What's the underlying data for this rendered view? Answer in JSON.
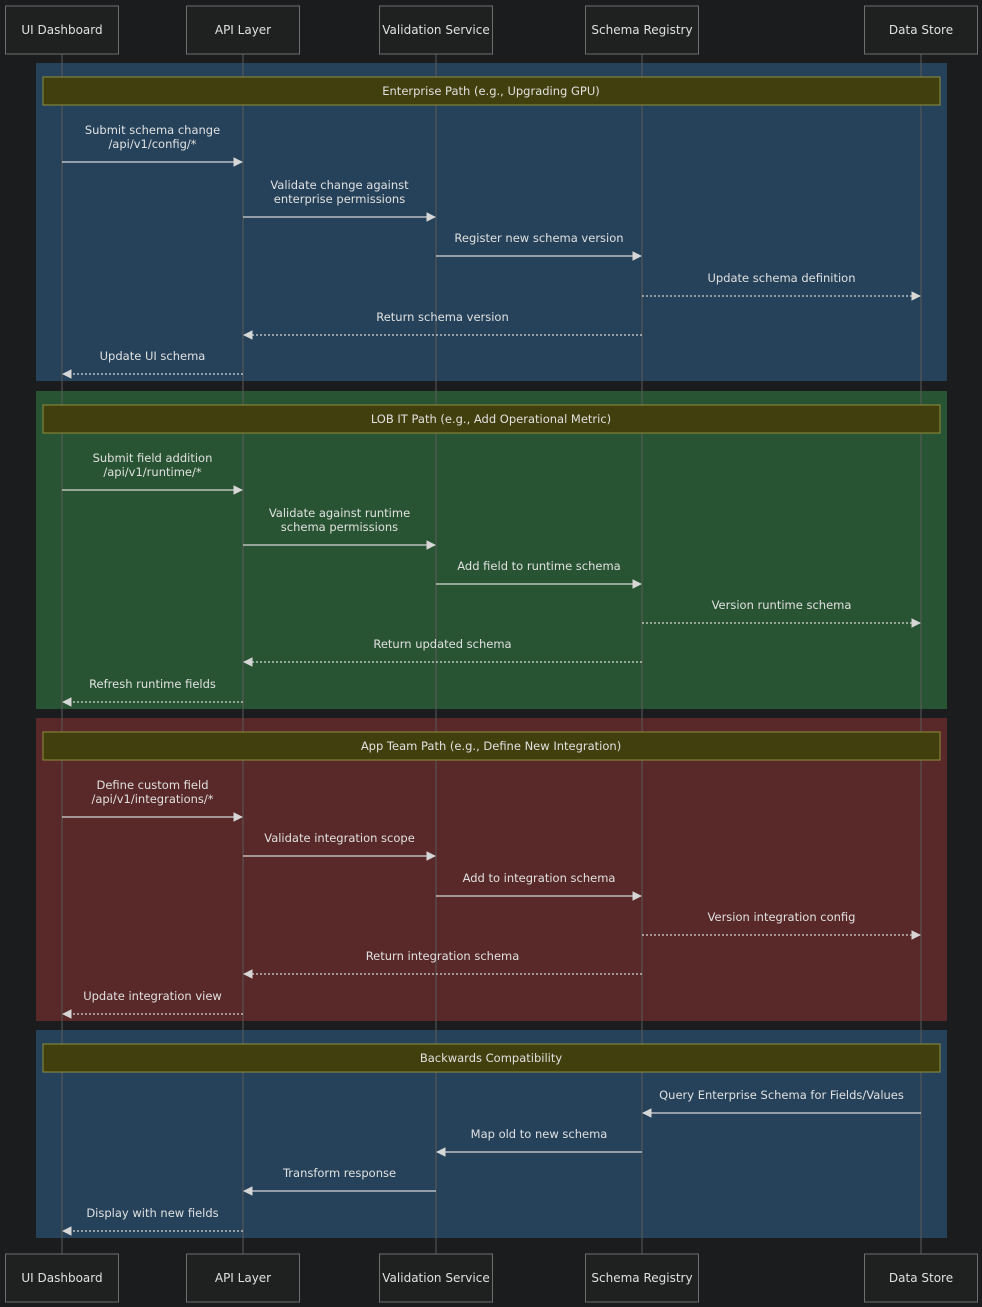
{
  "participants": [
    {
      "id": "ui",
      "label": "UI Dashboard"
    },
    {
      "id": "api",
      "label": "API Layer"
    },
    {
      "id": "val",
      "label": "Validation Service"
    },
    {
      "id": "reg",
      "label": "Schema Registry"
    },
    {
      "id": "ds",
      "label": "Data Store"
    }
  ],
  "sections": [
    {
      "id": "enterprise",
      "title": "Enterprise Path (e.g., Upgrading GPU)",
      "color": "#25425a",
      "messages": [
        {
          "from": "ui",
          "to": "api",
          "lines": [
            "Submit schema change",
            "/api/v1/config/*"
          ],
          "style": "solid"
        },
        {
          "from": "api",
          "to": "val",
          "lines": [
            "Validate change against",
            "enterprise permissions"
          ],
          "style": "solid"
        },
        {
          "from": "val",
          "to": "reg",
          "lines": [
            "Register new schema version"
          ],
          "style": "solid"
        },
        {
          "from": "reg",
          "to": "ds",
          "lines": [
            "Update schema definition"
          ],
          "style": "dotted"
        },
        {
          "from": "reg",
          "to": "api",
          "lines": [
            "Return schema version"
          ],
          "style": "dotted"
        },
        {
          "from": "api",
          "to": "ui",
          "lines": [
            "Update UI schema"
          ],
          "style": "dotted"
        }
      ]
    },
    {
      "id": "lob",
      "title": "LOB IT Path (e.g., Add Operational Metric)",
      "color": "#295433",
      "messages": [
        {
          "from": "ui",
          "to": "api",
          "lines": [
            "Submit field addition",
            "/api/v1/runtime/*"
          ],
          "style": "solid"
        },
        {
          "from": "api",
          "to": "val",
          "lines": [
            "Validate against runtime",
            "schema permissions"
          ],
          "style": "solid"
        },
        {
          "from": "val",
          "to": "reg",
          "lines": [
            "Add field to runtime schema"
          ],
          "style": "solid"
        },
        {
          "from": "reg",
          "to": "ds",
          "lines": [
            "Version runtime schema"
          ],
          "style": "dotted"
        },
        {
          "from": "reg",
          "to": "api",
          "lines": [
            "Return updated schema"
          ],
          "style": "dotted"
        },
        {
          "from": "api",
          "to": "ui",
          "lines": [
            "Refresh runtime fields"
          ],
          "style": "dotted"
        }
      ]
    },
    {
      "id": "app",
      "title": "App Team Path (e.g., Define New Integration)",
      "color": "#592828",
      "messages": [
        {
          "from": "ui",
          "to": "api",
          "lines": [
            "Define custom field",
            "/api/v1/integrations/*"
          ],
          "style": "solid"
        },
        {
          "from": "api",
          "to": "val",
          "lines": [
            "Validate integration scope"
          ],
          "style": "solid"
        },
        {
          "from": "val",
          "to": "reg",
          "lines": [
            "Add to integration schema"
          ],
          "style": "solid"
        },
        {
          "from": "reg",
          "to": "ds",
          "lines": [
            "Version integration config"
          ],
          "style": "dotted"
        },
        {
          "from": "reg",
          "to": "api",
          "lines": [
            "Return integration schema"
          ],
          "style": "dotted"
        },
        {
          "from": "api",
          "to": "ui",
          "lines": [
            "Update integration view"
          ],
          "style": "dotted"
        }
      ]
    },
    {
      "id": "compat",
      "title": "Backwards Compatibility",
      "color": "#25425a",
      "messages": [
        {
          "from": "ds",
          "to": "reg",
          "lines": [
            "Query Enterprise Schema for Fields/Values"
          ],
          "style": "solid"
        },
        {
          "from": "reg",
          "to": "val",
          "lines": [
            "Map old to new schema"
          ],
          "style": "solid"
        },
        {
          "from": "val",
          "to": "api",
          "lines": [
            "Transform response"
          ],
          "style": "solid"
        },
        {
          "from": "api",
          "to": "ui",
          "lines": [
            "Display with new fields"
          ],
          "style": "dotted"
        }
      ]
    }
  ],
  "colors": {
    "background": "#1b1c1e",
    "actor_fill": "#1f2020",
    "actor_border": "#6e6e6e",
    "lifeline": "#5a5a5a",
    "text": "#e0e0e0",
    "note_fill": "#403f0d",
    "note_border": "#908e3c",
    "arrow": "#d6d6d6"
  }
}
